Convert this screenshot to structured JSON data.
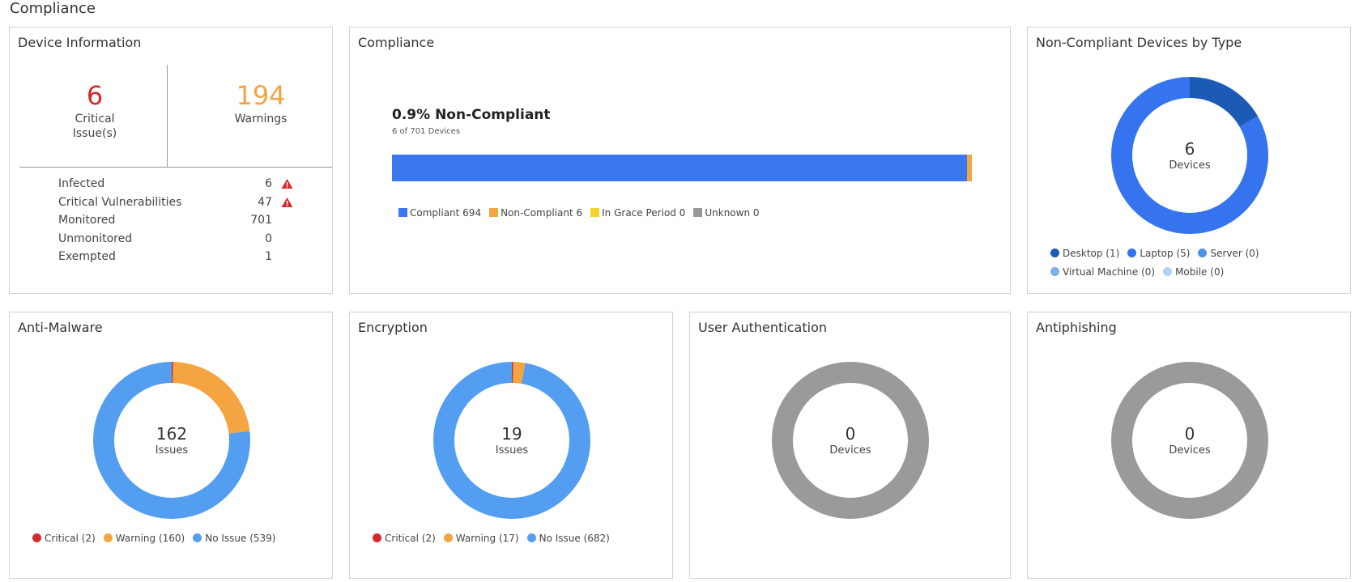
{
  "page_title": "Compliance",
  "device_info": {
    "title": "Device Information",
    "critical": {
      "value": "6",
      "label_line1": "Critical",
      "label_line2": "Issue(s)",
      "color": "#d42a2a"
    },
    "warnings": {
      "value": "194",
      "label": "Warnings",
      "color": "#f4a541"
    },
    "rows": [
      {
        "label": "Infected",
        "value": "6",
        "alert": true
      },
      {
        "label": "Critical Vulnerabilities",
        "value": "47",
        "alert": true
      },
      {
        "label": "Monitored",
        "value": "701",
        "alert": false
      },
      {
        "label": "Unmonitored",
        "value": "0",
        "alert": false
      },
      {
        "label": "Exempted",
        "value": "1",
        "alert": false
      }
    ]
  },
  "compliance": {
    "title": "Compliance",
    "headline": "0.9% Non-Compliant",
    "subline": "6 of 701 Devices",
    "legend": [
      {
        "label": "Compliant 694",
        "color": "#3b78f0",
        "value": 694
      },
      {
        "label": "Non-Compliant 6",
        "color": "#f4a541",
        "value": 6
      },
      {
        "label": "In Grace Period 0",
        "color": "#f2d22e",
        "value": 0
      },
      {
        "label": "Unknown 0",
        "color": "#999999",
        "value": 0
      }
    ]
  },
  "noncompliant_by_type": {
    "title": "Non-Compliant Devices by Type",
    "center_value": "6",
    "center_unit": "Devices",
    "legend": [
      {
        "label": "Desktop (1)",
        "color": "#1b5bb5",
        "value": 1
      },
      {
        "label": "Laptop (5)",
        "color": "#3574ee",
        "value": 5
      },
      {
        "label": "Server (0)",
        "color": "#4e93e8",
        "value": 0
      },
      {
        "label": "Virtual Machine (0)",
        "color": "#7eaef0",
        "value": 0
      },
      {
        "label": "Mobile (0)",
        "color": "#b3d1f6",
        "value": 0
      }
    ]
  },
  "anti_malware": {
    "title": "Anti-Malware",
    "center_value": "162",
    "center_unit": "Issues",
    "legend": [
      {
        "label": "Critical (2)",
        "color": "#d42a2a",
        "value": 2
      },
      {
        "label": "Warning (160)",
        "color": "#f4a541",
        "value": 160
      },
      {
        "label": "No Issue (539)",
        "color": "#549ef2",
        "value": 539
      }
    ]
  },
  "encryption": {
    "title": "Encryption",
    "center_value": "19",
    "center_unit": "Issues",
    "legend": [
      {
        "label": "Critical (2)",
        "color": "#d42a2a",
        "value": 2
      },
      {
        "label": "Warning (17)",
        "color": "#f4a541",
        "value": 17
      },
      {
        "label": "No Issue (682)",
        "color": "#549ef2",
        "value": 682
      }
    ]
  },
  "user_auth": {
    "title": "User Authentication",
    "center_value": "0",
    "center_unit": "Devices",
    "ring_color": "#9a9a9a"
  },
  "antiphishing": {
    "title": "Antiphishing",
    "center_value": "0",
    "center_unit": "Devices",
    "ring_color": "#9a9a9a"
  }
}
